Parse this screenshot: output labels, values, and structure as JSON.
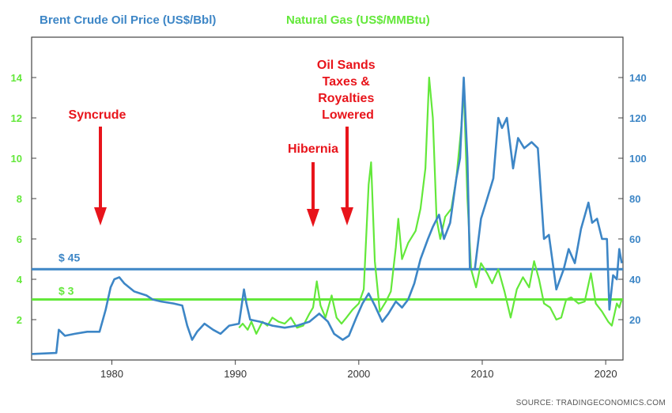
{
  "colors": {
    "oil": "#3d86c6",
    "gas": "#63e83a",
    "annotation": "#e8141b",
    "axis": "#333333"
  },
  "chart_data": {
    "type": "line",
    "legend": {
      "oil": "Brent Crude Oil Price (US$/Bbl)",
      "gas": "Natural Gas (US$/MMBtu)"
    },
    "x_ticks": [
      "1980",
      "1990",
      "2000",
      "2010",
      "2020"
    ],
    "xlim": [
      1973.5,
      2021.4
    ],
    "left_axis": {
      "label": "Natural Gas (US$/MMBtu)",
      "ylim": [
        0,
        16
      ],
      "ticks": [
        "2",
        "4",
        "6",
        "8",
        "10",
        "12",
        "14"
      ]
    },
    "right_axis": {
      "label": "Brent Crude Oil Price (US$/Bbl)",
      "ylim": [
        0,
        160
      ],
      "ticks": [
        "20",
        "40",
        "60",
        "80",
        "100",
        "120",
        "140"
      ]
    },
    "reference_lines": [
      {
        "series": "oil",
        "label": "$ 45",
        "value": 45
      },
      {
        "series": "gas",
        "label": "$ 3",
        "value": 3
      }
    ],
    "annotations": [
      {
        "label": "Syncrude",
        "year": 1978.8
      },
      {
        "label": "Hibernia",
        "year": 1996.6
      },
      {
        "label": "Oil Sands Taxes & Royalties Lowered",
        "year": 1999.3
      }
    ],
    "series": [
      {
        "name": "Brent Crude Oil Price",
        "axis": "right",
        "points": [
          [
            1973.5,
            3
          ],
          [
            1975.5,
            3.5
          ],
          [
            1975.7,
            15
          ],
          [
            1976.2,
            12
          ],
          [
            1977,
            13
          ],
          [
            1978,
            14
          ],
          [
            1979,
            14
          ],
          [
            1979.5,
            25
          ],
          [
            1979.9,
            36
          ],
          [
            1980.2,
            40
          ],
          [
            1980.6,
            41
          ],
          [
            1981,
            38
          ],
          [
            1981.4,
            36
          ],
          [
            1981.8,
            34
          ],
          [
            1982.3,
            33
          ],
          [
            1982.8,
            32
          ],
          [
            1983.3,
            30
          ],
          [
            1984,
            29
          ],
          [
            1985,
            28
          ],
          [
            1985.7,
            27
          ],
          [
            1986.1,
            17
          ],
          [
            1986.5,
            10
          ],
          [
            1986.9,
            14
          ],
          [
            1987.5,
            18
          ],
          [
            1988.2,
            15
          ],
          [
            1988.8,
            13
          ],
          [
            1989.5,
            17
          ],
          [
            1990.3,
            18
          ],
          [
            1990.7,
            35
          ],
          [
            1990.9,
            28
          ],
          [
            1991.2,
            20
          ],
          [
            1992,
            19
          ],
          [
            1993,
            17
          ],
          [
            1994,
            16
          ],
          [
            1995,
            17
          ],
          [
            1996,
            19
          ],
          [
            1996.8,
            23
          ],
          [
            1997.5,
            19
          ],
          [
            1998,
            13
          ],
          [
            1998.7,
            10
          ],
          [
            1999.2,
            12
          ],
          [
            1999.8,
            21
          ],
          [
            2000.3,
            28
          ],
          [
            2000.8,
            33
          ],
          [
            2001.3,
            27
          ],
          [
            2001.9,
            19
          ],
          [
            2002.4,
            23
          ],
          [
            2003,
            29
          ],
          [
            2003.5,
            26
          ],
          [
            2004,
            30
          ],
          [
            2004.5,
            38
          ],
          [
            2005,
            50
          ],
          [
            2005.6,
            60
          ],
          [
            2006,
            66
          ],
          [
            2006.5,
            72
          ],
          [
            2006.9,
            60
          ],
          [
            2007.4,
            68
          ],
          [
            2007.9,
            90
          ],
          [
            2008.2,
            100
          ],
          [
            2008.5,
            140
          ],
          [
            2008.8,
            100
          ],
          [
            2009,
            45
          ],
          [
            2009.4,
            45
          ],
          [
            2009.9,
            70
          ],
          [
            2010.3,
            78
          ],
          [
            2010.9,
            90
          ],
          [
            2011.3,
            120
          ],
          [
            2011.6,
            115
          ],
          [
            2012,
            120
          ],
          [
            2012.5,
            95
          ],
          [
            2012.9,
            110
          ],
          [
            2013.4,
            105
          ],
          [
            2014,
            108
          ],
          [
            2014.5,
            105
          ],
          [
            2015,
            60
          ],
          [
            2015.4,
            62
          ],
          [
            2016,
            35
          ],
          [
            2016.6,
            45
          ],
          [
            2017,
            55
          ],
          [
            2017.5,
            48
          ],
          [
            2018,
            65
          ],
          [
            2018.6,
            78
          ],
          [
            2018.9,
            68
          ],
          [
            2019.3,
            70
          ],
          [
            2019.7,
            60
          ],
          [
            2020.1,
            60
          ],
          [
            2020.3,
            25
          ],
          [
            2020.6,
            42
          ],
          [
            2020.9,
            40
          ],
          [
            2021.1,
            55
          ],
          [
            2021.3,
            48
          ]
        ]
      },
      {
        "name": "Natural Gas",
        "axis": "left",
        "points": [
          [
            1990.3,
            1.6
          ],
          [
            1990.6,
            1.8
          ],
          [
            1991,
            1.5
          ],
          [
            1991.3,
            1.9
          ],
          [
            1991.7,
            1.3
          ],
          [
            1992.2,
            1.9
          ],
          [
            1992.6,
            1.7
          ],
          [
            1993,
            2.1
          ],
          [
            1993.5,
            1.9
          ],
          [
            1994,
            1.8
          ],
          [
            1994.5,
            2.1
          ],
          [
            1995,
            1.6
          ],
          [
            1995.5,
            1.7
          ],
          [
            1996,
            2.3
          ],
          [
            1996.3,
            2.6
          ],
          [
            1996.6,
            3.9
          ],
          [
            1996.9,
            2.7
          ],
          [
            1997.3,
            2.1
          ],
          [
            1997.8,
            3.2
          ],
          [
            1998.2,
            2.1
          ],
          [
            1998.6,
            1.8
          ],
          [
            1999,
            2.1
          ],
          [
            1999.5,
            2.5
          ],
          [
            2000,
            2.8
          ],
          [
            2000.4,
            3.5
          ],
          [
            2000.8,
            8.7
          ],
          [
            2001,
            9.8
          ],
          [
            2001.3,
            4.9
          ],
          [
            2001.7,
            2.4
          ],
          [
            2002.2,
            2.9
          ],
          [
            2002.6,
            3.4
          ],
          [
            2003,
            5.6
          ],
          [
            2003.2,
            7.0
          ],
          [
            2003.5,
            5.0
          ],
          [
            2004,
            5.8
          ],
          [
            2004.6,
            6.4
          ],
          [
            2005,
            7.5
          ],
          [
            2005.4,
            9.5
          ],
          [
            2005.7,
            14.0
          ],
          [
            2006,
            12.0
          ],
          [
            2006.3,
            7.0
          ],
          [
            2006.6,
            6.0
          ],
          [
            2007,
            7.1
          ],
          [
            2007.5,
            7.5
          ],
          [
            2007.9,
            9.0
          ],
          [
            2008.3,
            11.5
          ],
          [
            2008.5,
            13.5
          ],
          [
            2008.8,
            8.0
          ],
          [
            2009.1,
            4.5
          ],
          [
            2009.5,
            3.6
          ],
          [
            2009.9,
            4.8
          ],
          [
            2010.4,
            4.3
          ],
          [
            2010.8,
            3.8
          ],
          [
            2011.3,
            4.5
          ],
          [
            2011.8,
            3.4
          ],
          [
            2012.3,
            2.1
          ],
          [
            2012.8,
            3.5
          ],
          [
            2013.3,
            4.1
          ],
          [
            2013.8,
            3.6
          ],
          [
            2014.2,
            4.9
          ],
          [
            2014.6,
            4.0
          ],
          [
            2015,
            2.8
          ],
          [
            2015.5,
            2.6
          ],
          [
            2016,
            2.0
          ],
          [
            2016.4,
            2.1
          ],
          [
            2016.8,
            3.0
          ],
          [
            2017.2,
            3.1
          ],
          [
            2017.8,
            2.8
          ],
          [
            2018.3,
            2.9
          ],
          [
            2018.8,
            4.3
          ],
          [
            2019.2,
            2.8
          ],
          [
            2019.7,
            2.4
          ],
          [
            2020.2,
            1.9
          ],
          [
            2020.5,
            1.7
          ],
          [
            2020.9,
            2.8
          ],
          [
            2021.1,
            2.6
          ],
          [
            2021.3,
            3.0
          ]
        ]
      }
    ]
  },
  "source": "SOURCE: TRADINGECONOMICS.COM"
}
